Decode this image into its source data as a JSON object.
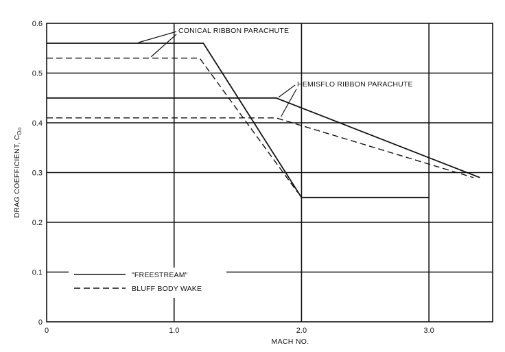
{
  "chart_data": {
    "type": "line",
    "xlabel": "MACH NO.",
    "ylabel": "DRAG COEFFICIENT, C",
    "ylabel_sub": "Do",
    "xlim": [
      0,
      3.5
    ],
    "ylim": [
      0,
      0.6
    ],
    "x_ticks": [
      0,
      1.0,
      2.0,
      3.0
    ],
    "x_tick_labels": [
      "0",
      "1.0",
      "2.0",
      "3.0"
    ],
    "y_ticks": [
      0,
      0.1,
      0.2,
      0.3,
      0.4,
      0.5,
      0.6
    ],
    "y_tick_labels": [
      "0",
      "0.1",
      "0.2",
      "0.3",
      "0.4",
      "0.5",
      "0.6"
    ],
    "grid": true,
    "annotations": [
      "CONICAL RIBBON PARACHUTE",
      "HEMISFLO RIBBON PARACHUTE"
    ],
    "legend": [
      {
        "label": "\"FREESTREAM\"",
        "style": "solid"
      },
      {
        "label": "BLUFF BODY WAKE",
        "style": "dashed"
      }
    ],
    "series": [
      {
        "group": "CONICAL RIBBON PARACHUTE",
        "style": "solid",
        "x": [
          0,
          1.23,
          2.0,
          3.0
        ],
        "y": [
          0.56,
          0.56,
          0.25,
          0.25
        ]
      },
      {
        "group": "CONICAL RIBBON PARACHUTE",
        "style": "dashed",
        "x": [
          0,
          1.2,
          1.97
        ],
        "y": [
          0.53,
          0.53,
          0.26
        ]
      },
      {
        "group": "HEMISFLO RIBBON PARACHUTE",
        "style": "solid",
        "x": [
          0,
          1.8,
          3.4
        ],
        "y": [
          0.45,
          0.45,
          0.29
        ]
      },
      {
        "group": "HEMISFLO RIBBON PARACHUTE",
        "style": "dashed",
        "x": [
          0,
          1.8,
          3.35
        ],
        "y": [
          0.41,
          0.41,
          0.29
        ]
      }
    ]
  }
}
